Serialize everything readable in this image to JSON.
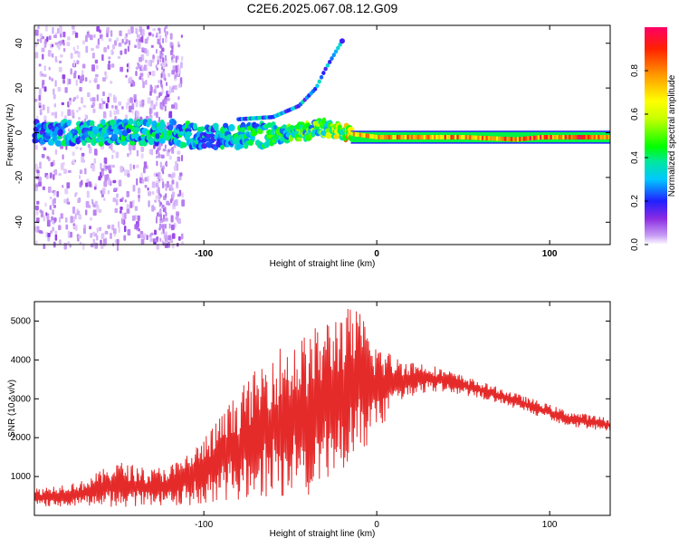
{
  "title": "C2E6.2025.067.08.12.G09",
  "chart_data": [
    {
      "type": "heatmap",
      "xlabel": "Height of straight line (km)",
      "ylabel": "Frequency (Hz)",
      "xlim": [
        -198,
        135
      ],
      "ylim": [
        -50,
        48
      ],
      "xticks": [
        -100,
        0,
        100
      ],
      "yticks": [
        -40,
        -20,
        0,
        20,
        40
      ],
      "colorbar": {
        "label": "Normalized spectral amplitude",
        "range": [
          0,
          1
        ],
        "ticks": [
          "0.0",
          "0.2",
          "0.4",
          "0.6",
          "0.8"
        ],
        "tick_values": [
          0.0,
          0.2,
          0.4,
          0.6,
          0.8
        ]
      },
      "main_band": [
        {
          "x": -198,
          "freq": 0,
          "amp": 0.35
        },
        {
          "x": -150,
          "freq": 0,
          "amp": 0.4
        },
        {
          "x": -120,
          "freq": 0,
          "amp": 0.4
        },
        {
          "x": -100,
          "freq": -2,
          "amp": 0.35
        },
        {
          "x": -60,
          "freq": -1,
          "amp": 0.45
        },
        {
          "x": -30,
          "freq": 2,
          "amp": 0.55
        },
        {
          "x": -20,
          "freq": 0,
          "amp": 0.75
        },
        {
          "x": 0,
          "freq": -2,
          "amp": 0.85
        },
        {
          "x": 50,
          "freq": -2,
          "amp": 0.9
        },
        {
          "x": 80,
          "freq": -3,
          "amp": 0.95
        },
        {
          "x": 95,
          "freq": -2,
          "amp": 0.95
        },
        {
          "x": 135,
          "freq": -2,
          "amp": 0.98
        }
      ],
      "rising_branch": [
        {
          "x": -80,
          "freq": 6
        },
        {
          "x": -60,
          "freq": 7
        },
        {
          "x": -45,
          "freq": 12
        },
        {
          "x": -35,
          "freq": 20
        },
        {
          "x": -30,
          "freq": 28
        },
        {
          "x": -20,
          "freq": 41
        }
      ]
    },
    {
      "type": "line",
      "xlabel": "Height of straight line (km)",
      "ylabel": "SNR (10 * v/v)",
      "xlim": [
        -198,
        135
      ],
      "ylim": [
        0,
        5500
      ],
      "xticks": [
        -100,
        0,
        100
      ],
      "yticks": [
        1000,
        2000,
        3000,
        4000,
        5000
      ],
      "series": [
        {
          "color": "#e52a2a",
          "envelope": [
            {
              "x": -198,
              "low": 200,
              "high": 700
            },
            {
              "x": -170,
              "low": 250,
              "high": 900
            },
            {
              "x": -150,
              "low": 200,
              "high": 1400
            },
            {
              "x": -130,
              "low": 200,
              "high": 1200
            },
            {
              "x": -115,
              "low": 200,
              "high": 1400
            },
            {
              "x": -100,
              "low": 300,
              "high": 2000
            },
            {
              "x": -80,
              "low": 400,
              "high": 3200
            },
            {
              "x": -60,
              "low": 500,
              "high": 4300
            },
            {
              "x": -40,
              "low": 500,
              "high": 4700
            },
            {
              "x": -20,
              "low": 1100,
              "high": 5400
            },
            {
              "x": -10,
              "low": 1500,
              "high": 5300
            },
            {
              "x": 0,
              "low": 2000,
              "high": 4500
            },
            {
              "x": 10,
              "low": 2800,
              "high": 4100
            },
            {
              "x": 30,
              "low": 3200,
              "high": 3900
            },
            {
              "x": 50,
              "low": 3100,
              "high": 3600
            },
            {
              "x": 70,
              "low": 2900,
              "high": 3300
            },
            {
              "x": 90,
              "low": 2600,
              "high": 3000
            },
            {
              "x": 110,
              "low": 2300,
              "high": 2700
            },
            {
              "x": 135,
              "low": 2150,
              "high": 2500
            }
          ]
        }
      ]
    }
  ]
}
